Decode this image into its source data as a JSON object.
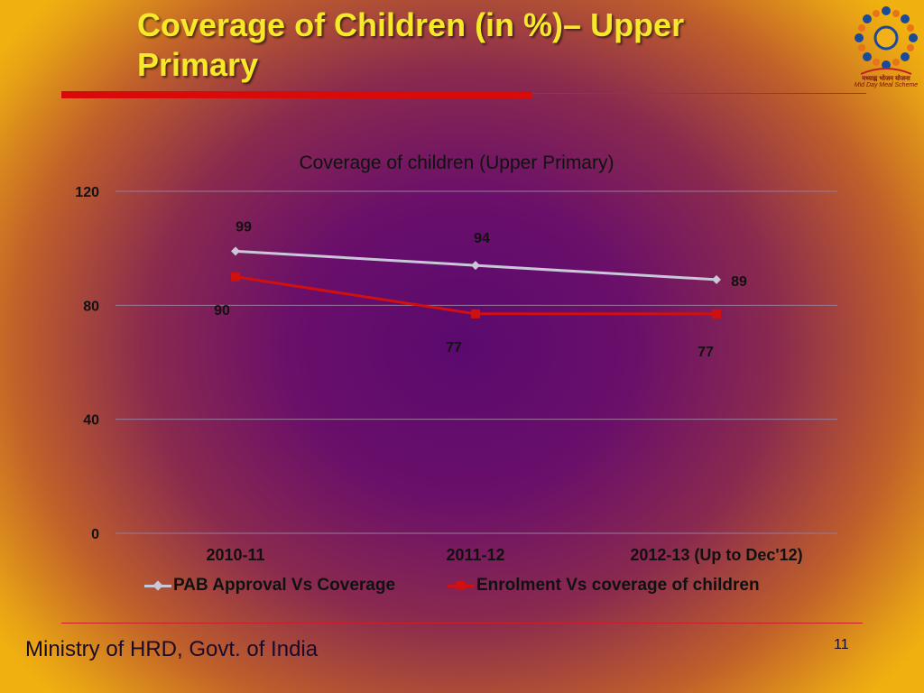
{
  "slide": {
    "title": "Coverage of Children (in %)– Upper Primary",
    "footer": "Ministry of HRD, Govt. of India",
    "slide_number": "11"
  },
  "logo": {
    "icon": "mid-day-meal-scheme-logo",
    "text_hindi": "मध्याह्न भोजन योजना",
    "text_english": "Mid Day Meal Scheme"
  },
  "colors": {
    "title": "#f5e92a",
    "accent_rule": "#d90a0a",
    "series_pab": "#c8c8d8",
    "series_enrolment": "#d01010"
  },
  "chart_data": {
    "type": "line",
    "title": "Coverage of children (Upper Primary)",
    "categories": [
      "2010-11",
      "2011-12",
      "2012-13 (Up to Dec'12)"
    ],
    "ylim": [
      0,
      120
    ],
    "yticks": [
      0,
      40,
      80,
      120
    ],
    "grid": true,
    "legend_position": "bottom",
    "series": [
      {
        "name": "PAB Approval Vs Coverage",
        "values": [
          99,
          94,
          89
        ],
        "marker": "diamond",
        "labels": [
          "99",
          "94",
          "89"
        ]
      },
      {
        "name": "Enrolment Vs coverage of children",
        "values": [
          90,
          77,
          77
        ],
        "marker": "square",
        "labels": [
          "90",
          "77",
          "77"
        ]
      }
    ]
  }
}
